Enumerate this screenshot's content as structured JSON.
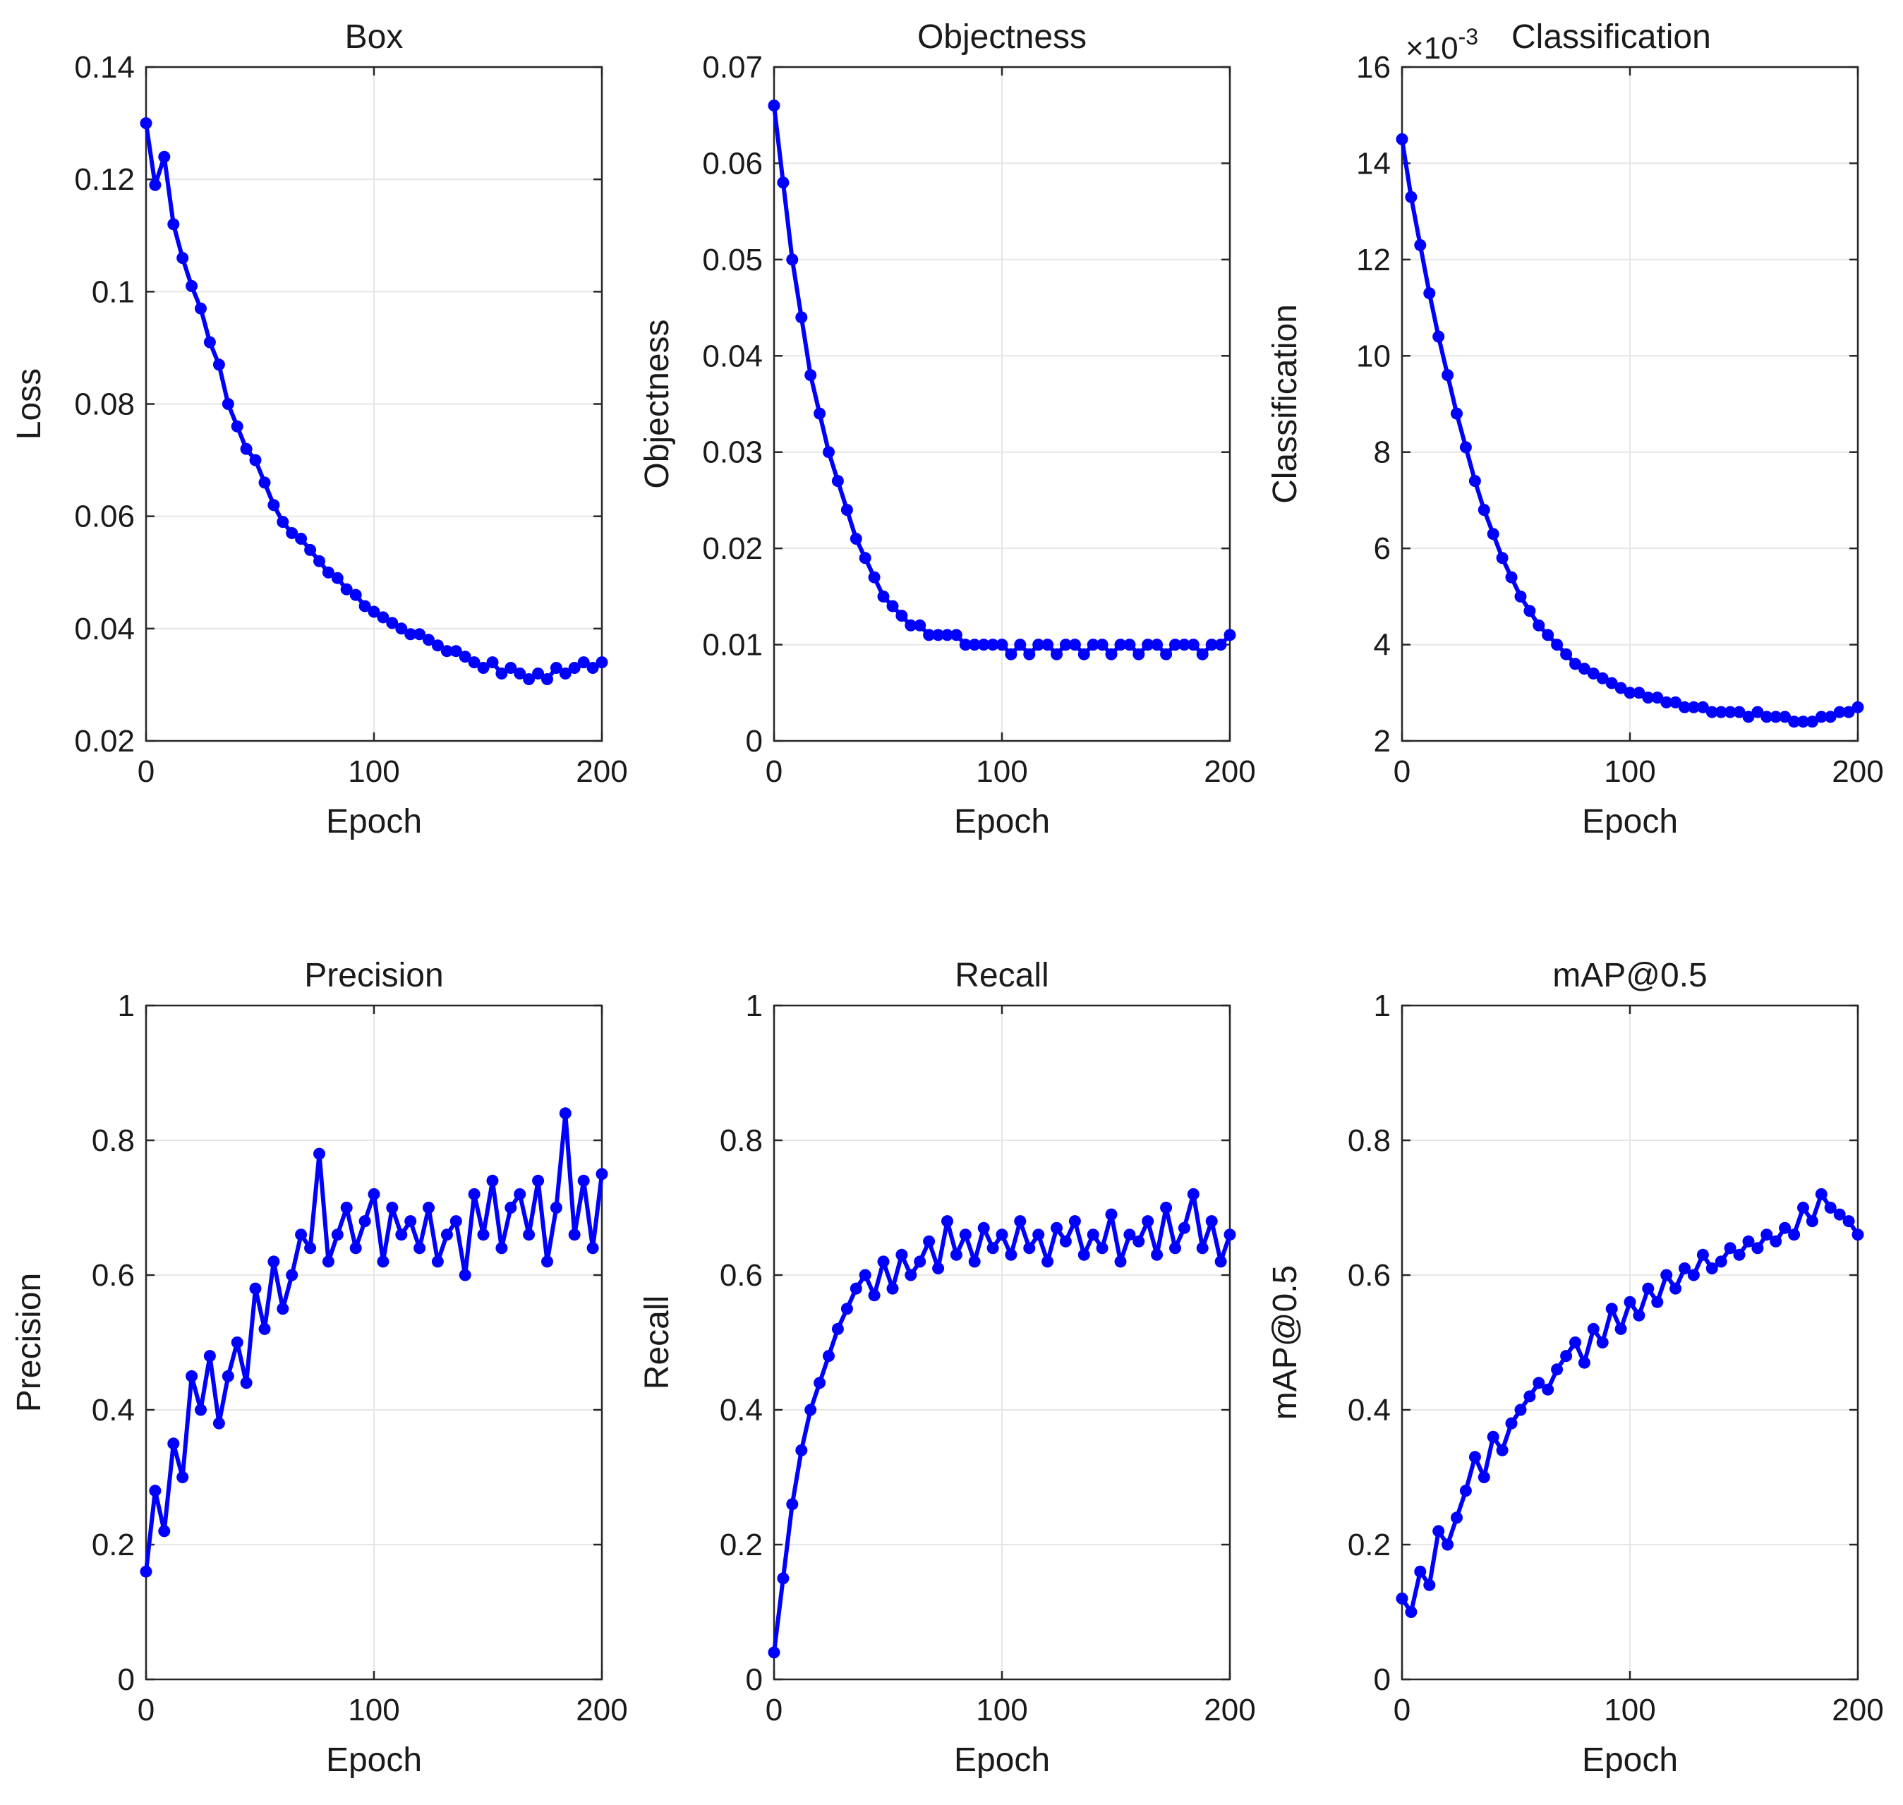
{
  "colors": {
    "series": "#0000ff",
    "axis": "#262626",
    "grid": "#e6e6e6",
    "background": "#ffffff"
  },
  "chart_data": [
    {
      "type": "line",
      "title": "Box",
      "xlabel": "Epoch",
      "ylabel": "Loss",
      "xlim": [
        0,
        200
      ],
      "ylim": [
        0.02,
        0.14
      ],
      "grid": true,
      "marker": "filled-circle",
      "xticks": [
        0,
        100,
        200
      ],
      "xtick_labels": [
        "0",
        "100",
        "200"
      ],
      "yticks": [
        0.02,
        0.04,
        0.06,
        0.08,
        0.1,
        0.12,
        0.14
      ],
      "ytick_labels": [
        "0.02",
        "0.04",
        "0.06",
        "0.08",
        "0.1",
        "0.12",
        "0.14"
      ],
      "exponent_label": "",
      "x": [
        0,
        4,
        8,
        12,
        16,
        20,
        24,
        28,
        32,
        36,
        40,
        44,
        48,
        52,
        56,
        60,
        64,
        68,
        72,
        76,
        80,
        84,
        88,
        92,
        96,
        100,
        104,
        108,
        112,
        116,
        120,
        124,
        128,
        132,
        136,
        140,
        144,
        148,
        152,
        156,
        160,
        164,
        168,
        172,
        176,
        180,
        184,
        188,
        192,
        196,
        200
      ],
      "values": [
        0.13,
        0.119,
        0.124,
        0.112,
        0.106,
        0.101,
        0.097,
        0.091,
        0.087,
        0.08,
        0.076,
        0.072,
        0.07,
        0.066,
        0.062,
        0.059,
        0.057,
        0.056,
        0.054,
        0.052,
        0.05,
        0.049,
        0.047,
        0.046,
        0.044,
        0.043,
        0.042,
        0.041,
        0.04,
        0.039,
        0.039,
        0.038,
        0.037,
        0.036,
        0.036,
        0.035,
        0.034,
        0.033,
        0.034,
        0.032,
        0.033,
        0.032,
        0.031,
        0.032,
        0.031,
        0.033,
        0.032,
        0.033,
        0.034,
        0.033,
        0.034
      ]
    },
    {
      "type": "line",
      "title": "Objectness",
      "xlabel": "Epoch",
      "ylabel": "Objectness",
      "xlim": [
        0,
        200
      ],
      "ylim": [
        0,
        0.07
      ],
      "grid": true,
      "marker": "filled-circle",
      "xticks": [
        0,
        100,
        200
      ],
      "xtick_labels": [
        "0",
        "100",
        "200"
      ],
      "yticks": [
        0,
        0.01,
        0.02,
        0.03,
        0.04,
        0.05,
        0.06,
        0.07
      ],
      "ytick_labels": [
        "0",
        "0.01",
        "0.02",
        "0.03",
        "0.04",
        "0.05",
        "0.06",
        "0.07"
      ],
      "exponent_label": "",
      "x": [
        0,
        4,
        8,
        12,
        16,
        20,
        24,
        28,
        32,
        36,
        40,
        44,
        48,
        52,
        56,
        60,
        64,
        68,
        72,
        76,
        80,
        84,
        88,
        92,
        96,
        100,
        104,
        108,
        112,
        116,
        120,
        124,
        128,
        132,
        136,
        140,
        144,
        148,
        152,
        156,
        160,
        164,
        168,
        172,
        176,
        180,
        184,
        188,
        192,
        196,
        200
      ],
      "values": [
        0.066,
        0.058,
        0.05,
        0.044,
        0.038,
        0.034,
        0.03,
        0.027,
        0.024,
        0.021,
        0.019,
        0.017,
        0.015,
        0.014,
        0.013,
        0.012,
        0.012,
        0.011,
        0.011,
        0.011,
        0.011,
        0.01,
        0.01,
        0.01,
        0.01,
        0.01,
        0.009,
        0.01,
        0.009,
        0.01,
        0.01,
        0.009,
        0.01,
        0.01,
        0.009,
        0.01,
        0.01,
        0.009,
        0.01,
        0.01,
        0.009,
        0.01,
        0.01,
        0.009,
        0.01,
        0.01,
        0.01,
        0.009,
        0.01,
        0.01,
        0.011
      ]
    },
    {
      "type": "line",
      "title": "Classification",
      "xlabel": "Epoch",
      "ylabel": "Classification",
      "xlim": [
        0,
        200
      ],
      "ylim": [
        0.002,
        0.016
      ],
      "grid": true,
      "marker": "filled-circle",
      "xticks": [
        0,
        100,
        200
      ],
      "xtick_labels": [
        "0",
        "100",
        "200"
      ],
      "yticks": [
        0.002,
        0.004,
        0.006,
        0.008,
        0.01,
        0.012,
        0.014,
        0.016
      ],
      "ytick_labels": [
        "2",
        "4",
        "6",
        "8",
        "10",
        "12",
        "14",
        "16"
      ],
      "exponent_label": "×10",
      "exponent_power": "-3",
      "x": [
        0,
        4,
        8,
        12,
        16,
        20,
        24,
        28,
        32,
        36,
        40,
        44,
        48,
        52,
        56,
        60,
        64,
        68,
        72,
        76,
        80,
        84,
        88,
        92,
        96,
        100,
        104,
        108,
        112,
        116,
        120,
        124,
        128,
        132,
        136,
        140,
        144,
        148,
        152,
        156,
        160,
        164,
        168,
        172,
        176,
        180,
        184,
        188,
        192,
        196,
        200
      ],
      "values": [
        0.0145,
        0.0133,
        0.0123,
        0.0113,
        0.0104,
        0.0096,
        0.0088,
        0.0081,
        0.0074,
        0.0068,
        0.0063,
        0.0058,
        0.0054,
        0.005,
        0.0047,
        0.0044,
        0.0042,
        0.004,
        0.0038,
        0.0036,
        0.0035,
        0.0034,
        0.0033,
        0.0032,
        0.0031,
        0.003,
        0.003,
        0.0029,
        0.0029,
        0.0028,
        0.0028,
        0.0027,
        0.0027,
        0.0027,
        0.0026,
        0.0026,
        0.0026,
        0.0026,
        0.0025,
        0.0026,
        0.0025,
        0.0025,
        0.0025,
        0.0024,
        0.0024,
        0.0024,
        0.0025,
        0.0025,
        0.0026,
        0.0026,
        0.0027
      ]
    },
    {
      "type": "line",
      "title": "Precision",
      "xlabel": "Epoch",
      "ylabel": "Precision",
      "xlim": [
        0,
        200
      ],
      "ylim": [
        0,
        1
      ],
      "grid": true,
      "marker": "filled-circle",
      "xticks": [
        0,
        100,
        200
      ],
      "xtick_labels": [
        "0",
        "100",
        "200"
      ],
      "yticks": [
        0,
        0.2,
        0.4,
        0.6,
        0.8,
        1
      ],
      "ytick_labels": [
        "0",
        "0.2",
        "0.4",
        "0.6",
        "0.8",
        "1"
      ],
      "exponent_label": "",
      "x": [
        0,
        4,
        8,
        12,
        16,
        20,
        24,
        28,
        32,
        36,
        40,
        44,
        48,
        52,
        56,
        60,
        64,
        68,
        72,
        76,
        80,
        84,
        88,
        92,
        96,
        100,
        104,
        108,
        112,
        116,
        120,
        124,
        128,
        132,
        136,
        140,
        144,
        148,
        152,
        156,
        160,
        164,
        168,
        172,
        176,
        180,
        184,
        188,
        192,
        196,
        200
      ],
      "values": [
        0.16,
        0.28,
        0.22,
        0.35,
        0.3,
        0.45,
        0.4,
        0.48,
        0.38,
        0.45,
        0.5,
        0.44,
        0.58,
        0.52,
        0.62,
        0.55,
        0.6,
        0.66,
        0.64,
        0.78,
        0.62,
        0.66,
        0.7,
        0.64,
        0.68,
        0.72,
        0.62,
        0.7,
        0.66,
        0.68,
        0.64,
        0.7,
        0.62,
        0.66,
        0.68,
        0.6,
        0.72,
        0.66,
        0.74,
        0.64,
        0.7,
        0.72,
        0.66,
        0.74,
        0.62,
        0.7,
        0.84,
        0.66,
        0.74,
        0.64,
        0.75
      ]
    },
    {
      "type": "line",
      "title": "Recall",
      "xlabel": "Epoch",
      "ylabel": "Recall",
      "xlim": [
        0,
        200
      ],
      "ylim": [
        0,
        1
      ],
      "grid": true,
      "marker": "filled-circle",
      "xticks": [
        0,
        100,
        200
      ],
      "xtick_labels": [
        "0",
        "100",
        "200"
      ],
      "yticks": [
        0,
        0.2,
        0.4,
        0.6,
        0.8,
        1
      ],
      "ytick_labels": [
        "0",
        "0.2",
        "0.4",
        "0.6",
        "0.8",
        "1"
      ],
      "exponent_label": "",
      "x": [
        0,
        4,
        8,
        12,
        16,
        20,
        24,
        28,
        32,
        36,
        40,
        44,
        48,
        52,
        56,
        60,
        64,
        68,
        72,
        76,
        80,
        84,
        88,
        92,
        96,
        100,
        104,
        108,
        112,
        116,
        120,
        124,
        128,
        132,
        136,
        140,
        144,
        148,
        152,
        156,
        160,
        164,
        168,
        172,
        176,
        180,
        184,
        188,
        192,
        196,
        200
      ],
      "values": [
        0.04,
        0.15,
        0.26,
        0.34,
        0.4,
        0.44,
        0.48,
        0.52,
        0.55,
        0.58,
        0.6,
        0.57,
        0.62,
        0.58,
        0.63,
        0.6,
        0.62,
        0.65,
        0.61,
        0.68,
        0.63,
        0.66,
        0.62,
        0.67,
        0.64,
        0.66,
        0.63,
        0.68,
        0.64,
        0.66,
        0.62,
        0.67,
        0.65,
        0.68,
        0.63,
        0.66,
        0.64,
        0.69,
        0.62,
        0.66,
        0.65,
        0.68,
        0.63,
        0.7,
        0.64,
        0.67,
        0.72,
        0.64,
        0.68,
        0.62,
        0.66
      ]
    },
    {
      "type": "line",
      "title": "mAP@0.5",
      "xlabel": "Epoch",
      "ylabel": "mAP@0.5",
      "xlim": [
        0,
        200
      ],
      "ylim": [
        0,
        1
      ],
      "grid": true,
      "marker": "filled-circle",
      "xticks": [
        0,
        100,
        200
      ],
      "xtick_labels": [
        "0",
        "100",
        "200"
      ],
      "yticks": [
        0,
        0.2,
        0.4,
        0.6,
        0.8,
        1
      ],
      "ytick_labels": [
        "0",
        "0.2",
        "0.4",
        "0.6",
        "0.8",
        "1"
      ],
      "exponent_label": "",
      "x": [
        0,
        4,
        8,
        12,
        16,
        20,
        24,
        28,
        32,
        36,
        40,
        44,
        48,
        52,
        56,
        60,
        64,
        68,
        72,
        76,
        80,
        84,
        88,
        92,
        96,
        100,
        104,
        108,
        112,
        116,
        120,
        124,
        128,
        132,
        136,
        140,
        144,
        148,
        152,
        156,
        160,
        164,
        168,
        172,
        176,
        180,
        184,
        188,
        192,
        196,
        200
      ],
      "values": [
        0.12,
        0.1,
        0.16,
        0.14,
        0.22,
        0.2,
        0.24,
        0.28,
        0.33,
        0.3,
        0.36,
        0.34,
        0.38,
        0.4,
        0.42,
        0.44,
        0.43,
        0.46,
        0.48,
        0.5,
        0.47,
        0.52,
        0.5,
        0.55,
        0.52,
        0.56,
        0.54,
        0.58,
        0.56,
        0.6,
        0.58,
        0.61,
        0.6,
        0.63,
        0.61,
        0.62,
        0.64,
        0.63,
        0.65,
        0.64,
        0.66,
        0.65,
        0.67,
        0.66,
        0.7,
        0.68,
        0.72,
        0.7,
        0.69,
        0.68,
        0.66
      ]
    }
  ]
}
